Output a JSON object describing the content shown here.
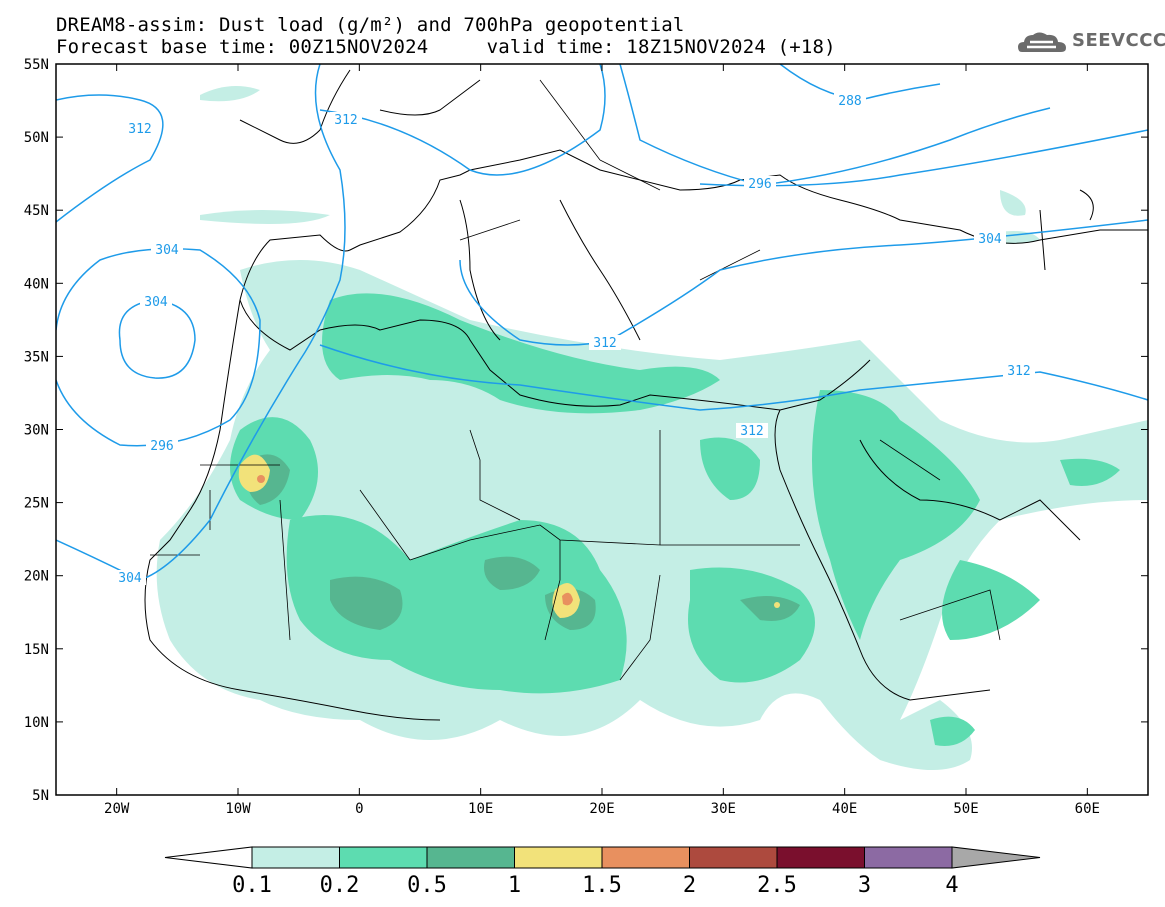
{
  "header": {
    "title_line1": "DREAM8-assim: Dust load (g/m²) and 700hPa geopotential",
    "title_line2": "Forecast base time: 00Z15NOV2024     valid time: 18Z15NOV2024 (+18)",
    "logo_text": "SEEVCCC"
  },
  "map": {
    "lon_range": [
      -25,
      65
    ],
    "lat_range": [
      5,
      55
    ],
    "lon_ticks": [
      {
        "value": -20,
        "label": "20W"
      },
      {
        "value": -10,
        "label": "10W"
      },
      {
        "value": 0,
        "label": "0"
      },
      {
        "value": 10,
        "label": "10E"
      },
      {
        "value": 20,
        "label": "20E"
      },
      {
        "value": 30,
        "label": "30E"
      },
      {
        "value": 40,
        "label": "40E"
      },
      {
        "value": 50,
        "label": "50E"
      },
      {
        "value": 60,
        "label": "60E"
      }
    ],
    "lat_ticks": [
      {
        "value": 55,
        "label": "55N"
      },
      {
        "value": 50,
        "label": "50N"
      },
      {
        "value": 45,
        "label": "45N"
      },
      {
        "value": 40,
        "label": "40N"
      },
      {
        "value": 35,
        "label": "35N"
      },
      {
        "value": 30,
        "label": "30N"
      },
      {
        "value": 25,
        "label": "25N"
      },
      {
        "value": 20,
        "label": "20N"
      },
      {
        "value": 15,
        "label": "15N"
      },
      {
        "value": 10,
        "label": "10N"
      },
      {
        "value": 5,
        "label": "5N"
      }
    ],
    "contour_labels": [
      "312",
      "312",
      "288",
      "296",
      "304",
      "304",
      "296",
      "304",
      "312",
      "312",
      "304",
      "312"
    ],
    "contour_color": "#1e9be9"
  },
  "colorbar": {
    "labels": [
      "0.1",
      "0.2",
      "0.5",
      "1",
      "1.5",
      "2",
      "2.5",
      "3",
      "4"
    ],
    "colors": [
      "#c4eee5",
      "#5ddcb0",
      "#56b690",
      "#f2e27a",
      "#e8905f",
      "#ad4a3e",
      "#7a0f2d",
      "#8c6aa3"
    ],
    "underflow_color": "#ffffff",
    "overflow_color": "#a8a8a8"
  }
}
